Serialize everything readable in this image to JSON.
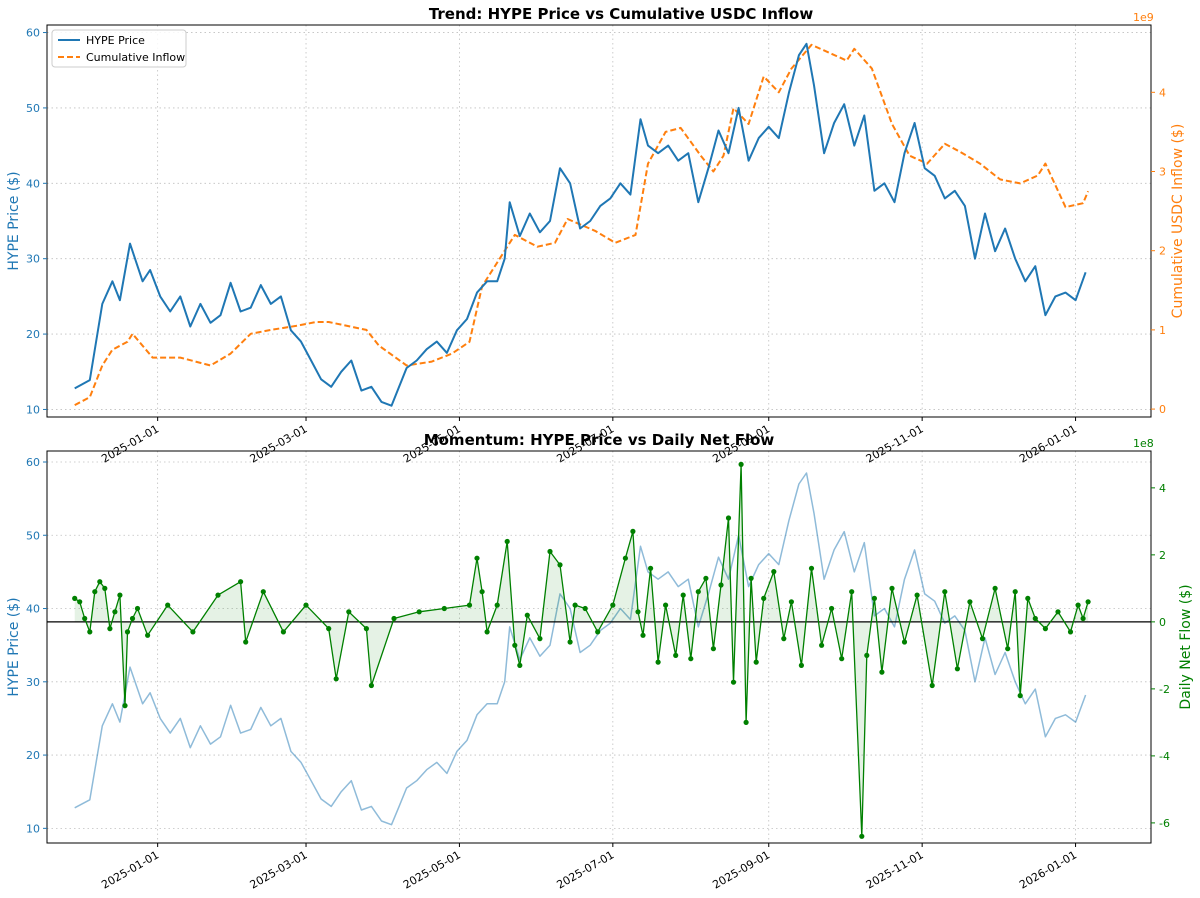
{
  "chart_data": [
    {
      "type": "line",
      "title": "Trend: HYPE Price vs Cumulative USDC Inflow",
      "xlabel": "",
      "ylabel": "HYPE Price ($)",
      "ylabel_right": "Cumulative USDC Inflow ($)",
      "right_axis_multiplier": "1e9",
      "ylim": [
        9,
        61
      ],
      "ylim_right": [
        -0.1,
        4.85
      ],
      "xlim": [
        "2024-11-18",
        "2026-01-31"
      ],
      "grid": true,
      "legend_position": "top-left",
      "yticks": [
        10,
        20,
        30,
        40,
        50,
        60
      ],
      "yticks_right": [
        0,
        1,
        2,
        3,
        4
      ],
      "xticks": [
        "2025-01-01",
        "2025-03-01",
        "2025-05-01",
        "2025-07-01",
        "2025-09-01",
        "2025-11-01",
        "2026-01-01"
      ],
      "colors": {
        "price": "#1f77b4",
        "cumulative": "#ff7f0e"
      },
      "series": [
        {
          "name": "HYPE Price",
          "axis": "left",
          "x": [
            "2024-11-29",
            "2024-12-05",
            "2024-12-10",
            "2024-12-14",
            "2024-12-17",
            "2024-12-21",
            "2024-12-26",
            "2024-12-29",
            "2025-01-02",
            "2025-01-06",
            "2025-01-10",
            "2025-01-14",
            "2025-01-18",
            "2025-01-22",
            "2025-01-26",
            "2025-01-30",
            "2025-02-03",
            "2025-02-07",
            "2025-02-11",
            "2025-02-15",
            "2025-02-19",
            "2025-02-23",
            "2025-02-27",
            "2025-03-03",
            "2025-03-07",
            "2025-03-11",
            "2025-03-15",
            "2025-03-19",
            "2025-03-23",
            "2025-03-27",
            "2025-03-31",
            "2025-04-04",
            "2025-04-07",
            "2025-04-10",
            "2025-04-14",
            "2025-04-18",
            "2025-04-22",
            "2025-04-26",
            "2025-04-30",
            "2025-05-04",
            "2025-05-08",
            "2025-05-12",
            "2025-05-16",
            "2025-05-19",
            "2025-05-21",
            "2025-05-25",
            "2025-05-29",
            "2025-06-02",
            "2025-06-06",
            "2025-06-10",
            "2025-06-14",
            "2025-06-18",
            "2025-06-22",
            "2025-06-26",
            "2025-06-30",
            "2025-07-04",
            "2025-07-08",
            "2025-07-12",
            "2025-07-15",
            "2025-07-19",
            "2025-07-23",
            "2025-07-27",
            "2025-07-31",
            "2025-08-04",
            "2025-08-08",
            "2025-08-12",
            "2025-08-16",
            "2025-08-20",
            "2025-08-24",
            "2025-08-28",
            "2025-09-01",
            "2025-09-05",
            "2025-09-09",
            "2025-09-13",
            "2025-09-16",
            "2025-09-19",
            "2025-09-23",
            "2025-09-27",
            "2025-10-01",
            "2025-10-05",
            "2025-10-09",
            "2025-10-13",
            "2025-10-17",
            "2025-10-21",
            "2025-10-25",
            "2025-10-29",
            "2025-11-02",
            "2025-11-06",
            "2025-11-10",
            "2025-11-14",
            "2025-11-18",
            "2025-11-22",
            "2025-11-26",
            "2025-11-30",
            "2025-12-04",
            "2025-12-08",
            "2025-12-12",
            "2025-12-16",
            "2025-12-20",
            "2025-12-24",
            "2025-12-28",
            "2026-01-01",
            "2026-01-05"
          ],
          "values": [
            12.8,
            13.9,
            24.0,
            27.0,
            24.5,
            32.0,
            27.0,
            28.5,
            25.0,
            23.0,
            25.0,
            21.0,
            24.0,
            21.5,
            22.5,
            26.8,
            23.0,
            23.5,
            26.5,
            24.0,
            25.0,
            20.5,
            19.0,
            16.5,
            14.0,
            13.0,
            15.0,
            16.5,
            12.5,
            13.0,
            11.0,
            10.5,
            13.0,
            15.5,
            16.5,
            18.0,
            19.0,
            17.5,
            20.5,
            22.0,
            25.5,
            27.0,
            27.0,
            30.0,
            37.5,
            33.0,
            36.0,
            33.5,
            35.0,
            42.0,
            40.0,
            34.0,
            35.0,
            37.0,
            38.0,
            40.0,
            38.5,
            48.5,
            45.0,
            44.0,
            45.0,
            43.0,
            44.0,
            37.5,
            42.0,
            47.0,
            44.0,
            50.0,
            43.0,
            46.0,
            47.5,
            46.0,
            52.0,
            57.0,
            58.5,
            53.0,
            44.0,
            48.0,
            50.5,
            45.0,
            49.0,
            39.0,
            40.0,
            37.5,
            44.0,
            48.0,
            42.0,
            41.0,
            38.0,
            39.0,
            37.0,
            30.0,
            36.0,
            31.0,
            34.0,
            30.0,
            27.0,
            29.0,
            22.5,
            25.0,
            25.5,
            24.5,
            28.2
          ]
        },
        {
          "name": "Cumulative Inflow",
          "axis": "right",
          "x": [
            "2024-11-29",
            "2024-12-05",
            "2024-12-10",
            "2024-12-14",
            "2024-12-20",
            "2024-12-22",
            "2024-12-30",
            "2025-01-10",
            "2025-01-22",
            "2025-01-30",
            "2025-02-07",
            "2025-02-15",
            "2025-02-25",
            "2025-03-05",
            "2025-03-10",
            "2025-03-25",
            "2025-03-30",
            "2025-04-10",
            "2025-04-20",
            "2025-04-28",
            "2025-05-05",
            "2025-05-10",
            "2025-05-18",
            "2025-05-23",
            "2025-06-01",
            "2025-06-08",
            "2025-06-13",
            "2025-06-24",
            "2025-07-02",
            "2025-07-10",
            "2025-07-15",
            "2025-07-22",
            "2025-07-28",
            "2025-08-05",
            "2025-08-10",
            "2025-08-14",
            "2025-08-18",
            "2025-08-24",
            "2025-08-30",
            "2025-09-05",
            "2025-09-10",
            "2025-09-18",
            "2025-09-25",
            "2025-10-02",
            "2025-10-05",
            "2025-10-12",
            "2025-10-20",
            "2025-10-27",
            "2025-11-03",
            "2025-11-10",
            "2025-11-16",
            "2025-11-24",
            "2025-12-02",
            "2025-12-10",
            "2025-12-17",
            "2025-12-20",
            "2025-12-28",
            "2026-01-04",
            "2026-01-06"
          ],
          "values": [
            0.05,
            0.15,
            0.55,
            0.75,
            0.85,
            0.95,
            0.65,
            0.65,
            0.55,
            0.7,
            0.95,
            1.0,
            1.05,
            1.1,
            1.1,
            1.0,
            0.8,
            0.55,
            0.6,
            0.7,
            0.85,
            1.55,
            1.95,
            2.2,
            2.05,
            2.1,
            2.4,
            2.25,
            2.1,
            2.2,
            3.1,
            3.5,
            3.55,
            3.2,
            3.0,
            3.2,
            3.8,
            3.6,
            4.2,
            4.0,
            4.3,
            4.6,
            4.5,
            4.4,
            4.55,
            4.3,
            3.6,
            3.2,
            3.1,
            3.35,
            3.25,
            3.1,
            2.9,
            2.85,
            2.95,
            3.1,
            2.55,
            2.6,
            2.75
          ]
        }
      ]
    },
    {
      "type": "line",
      "title": "Momentum: HYPE Price vs Daily Net Flow",
      "xlabel": "",
      "ylabel": "HYPE Price ($)",
      "ylabel_right": "Daily Net Flow ($)",
      "right_axis_multiplier": "1e8",
      "ylim": [
        8,
        61.5
      ],
      "ylim_right": [
        -6.6,
        5.1
      ],
      "xlim": [
        "2024-11-18",
        "2026-01-31"
      ],
      "grid": true,
      "yticks": [
        10,
        20,
        30,
        40,
        50,
        60
      ],
      "yticks_right": [
        -6,
        -4,
        -2,
        0,
        2,
        4
      ],
      "xticks": [
        "2025-01-01",
        "2025-03-01",
        "2025-05-01",
        "2025-07-01",
        "2025-09-01",
        "2025-11-01",
        "2026-01-01"
      ],
      "colors": {
        "price": "#1f77b4",
        "net_flow": "#008000",
        "zero_line": "#000000"
      },
      "series": [
        {
          "name": "HYPE Price",
          "axis": "left",
          "note": "same price series as the upper panel, drawn faded"
        },
        {
          "name": "Daily Net Flow",
          "axis": "right",
          "x": [
            "2024-11-29",
            "2024-12-01",
            "2024-12-03",
            "2024-12-05",
            "2024-12-07",
            "2024-12-09",
            "2024-12-11",
            "2024-12-13",
            "2024-12-15",
            "2024-12-17",
            "2024-12-19",
            "2024-12-20",
            "2024-12-22",
            "2024-12-24",
            "2024-12-28",
            "2025-01-05",
            "2025-01-15",
            "2025-01-25",
            "2025-02-03",
            "2025-02-05",
            "2025-02-12",
            "2025-02-20",
            "2025-03-01",
            "2025-03-10",
            "2025-03-13",
            "2025-03-18",
            "2025-03-25",
            "2025-03-27",
            "2025-04-05",
            "2025-04-15",
            "2025-04-25",
            "2025-05-05",
            "2025-05-08",
            "2025-05-10",
            "2025-05-12",
            "2025-05-16",
            "2025-05-20",
            "2025-05-23",
            "2025-05-25",
            "2025-05-28",
            "2025-06-02",
            "2025-06-06",
            "2025-06-10",
            "2025-06-14",
            "2025-06-16",
            "2025-06-20",
            "2025-06-25",
            "2025-07-01",
            "2025-07-06",
            "2025-07-09",
            "2025-07-11",
            "2025-07-13",
            "2025-07-16",
            "2025-07-19",
            "2025-07-22",
            "2025-07-26",
            "2025-07-29",
            "2025-08-01",
            "2025-08-04",
            "2025-08-07",
            "2025-08-10",
            "2025-08-13",
            "2025-08-16",
            "2025-08-18",
            "2025-08-21",
            "2025-08-23",
            "2025-08-25",
            "2025-08-27",
            "2025-08-30",
            "2025-09-03",
            "2025-09-07",
            "2025-09-10",
            "2025-09-14",
            "2025-09-18",
            "2025-09-22",
            "2025-09-26",
            "2025-09-30",
            "2025-10-04",
            "2025-10-08",
            "2025-10-10",
            "2025-10-13",
            "2025-10-16",
            "2025-10-20",
            "2025-10-25",
            "2025-10-30",
            "2025-11-05",
            "2025-11-10",
            "2025-11-15",
            "2025-11-20",
            "2025-11-25",
            "2025-11-30",
            "2025-12-05",
            "2025-12-08",
            "2025-12-10",
            "2025-12-13",
            "2025-12-16",
            "2025-12-20",
            "2025-12-25",
            "2025-12-30",
            "2026-01-02",
            "2026-01-04",
            "2026-01-06"
          ],
          "values": [
            0.7,
            0.6,
            0.1,
            -0.3,
            0.9,
            1.2,
            1.0,
            -0.2,
            0.3,
            0.8,
            -2.5,
            -0.3,
            0.1,
            0.4,
            -0.4,
            0.5,
            -0.3,
            0.8,
            1.2,
            -0.6,
            0.9,
            -0.3,
            0.5,
            -0.2,
            -1.7,
            0.3,
            -0.2,
            -1.9,
            0.1,
            0.3,
            0.4,
            0.5,
            1.9,
            0.9,
            -0.3,
            0.5,
            2.4,
            -0.7,
            -1.3,
            0.2,
            -0.5,
            2.1,
            1.7,
            -0.6,
            0.5,
            0.4,
            -0.3,
            0.5,
            1.9,
            2.7,
            0.3,
            -0.4,
            1.6,
            -1.2,
            0.5,
            -1.0,
            0.8,
            -1.1,
            0.9,
            1.3,
            -0.8,
            1.1,
            3.1,
            -1.8,
            4.7,
            -3.0,
            1.3,
            -1.2,
            0.7,
            1.5,
            -0.5,
            0.6,
            -1.3,
            1.6,
            -0.7,
            0.4,
            -1.1,
            0.9,
            -6.4,
            -1.0,
            0.7,
            -1.5,
            1.0,
            -0.6,
            0.8,
            -1.9,
            0.9,
            -1.4,
            0.6,
            -0.5,
            1.0,
            -0.8,
            0.9,
            -2.2,
            0.7,
            0.1,
            -0.2,
            0.3,
            -0.3,
            0.5,
            0.1,
            0.6
          ]
        }
      ]
    }
  ]
}
